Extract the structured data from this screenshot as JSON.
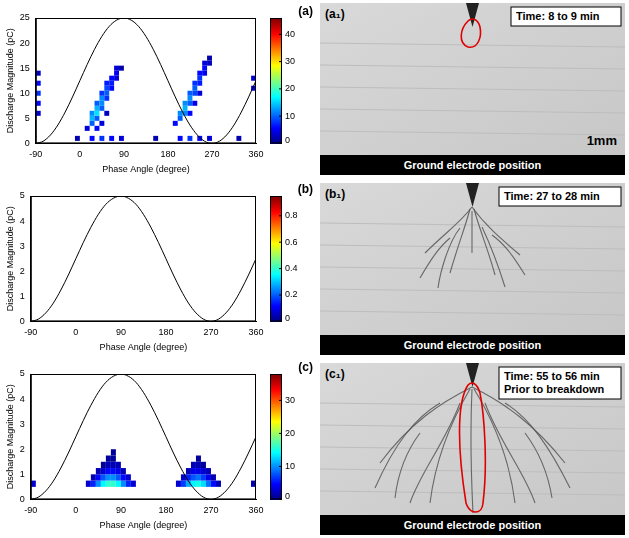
{
  "chart_data": [
    {
      "type": "heatmap",
      "label": "(a)",
      "x_label": "Phase Angle (degree)",
      "y_label": "Discharge Magnitude (pC)",
      "xlim": [
        -90,
        360
      ],
      "xticks": [
        -90,
        0,
        90,
        180,
        270,
        360
      ],
      "ylim": [
        0,
        25
      ],
      "yticks": [
        0,
        5,
        10,
        15,
        20,
        25
      ],
      "grid": false,
      "bin": [
        10,
        1
      ],
      "cells": [
        [
          15,
          3,
          4
        ],
        [
          25,
          4,
          10
        ],
        [
          25,
          5,
          14
        ],
        [
          25,
          6,
          12
        ],
        [
          35,
          5,
          10
        ],
        [
          35,
          6,
          16
        ],
        [
          35,
          7,
          14
        ],
        [
          35,
          8,
          10
        ],
        [
          45,
          7,
          10
        ],
        [
          45,
          8,
          12
        ],
        [
          45,
          9,
          12
        ],
        [
          45,
          10,
          8
        ],
        [
          55,
          9,
          8
        ],
        [
          55,
          10,
          10
        ],
        [
          55,
          11,
          9
        ],
        [
          55,
          12,
          7
        ],
        [
          65,
          11,
          6
        ],
        [
          65,
          12,
          7
        ],
        [
          65,
          13,
          6
        ],
        [
          75,
          13,
          4
        ],
        [
          75,
          14,
          5
        ],
        [
          75,
          15,
          4
        ],
        [
          85,
          15,
          2
        ],
        [
          35,
          3,
          6
        ],
        [
          45,
          4,
          4
        ],
        [
          55,
          6,
          3
        ],
        [
          195,
          4,
          6
        ],
        [
          205,
          5,
          10
        ],
        [
          205,
          6,
          12
        ],
        [
          215,
          6,
          12
        ],
        [
          215,
          7,
          14
        ],
        [
          215,
          8,
          12
        ],
        [
          225,
          8,
          10
        ],
        [
          225,
          9,
          12
        ],
        [
          225,
          10,
          10
        ],
        [
          235,
          10,
          9
        ],
        [
          235,
          11,
          10
        ],
        [
          235,
          12,
          8
        ],
        [
          245,
          12,
          7
        ],
        [
          245,
          13,
          8
        ],
        [
          245,
          14,
          6
        ],
        [
          255,
          14,
          5
        ],
        [
          255,
          15,
          6
        ],
        [
          255,
          16,
          4
        ],
        [
          265,
          16,
          3
        ],
        [
          265,
          17,
          2
        ],
        [
          225,
          6,
          6
        ],
        [
          245,
          10,
          4
        ],
        [
          235,
          8,
          5
        ],
        [
          25,
          1,
          6
        ],
        [
          45,
          1,
          8
        ],
        [
          65,
          1,
          6
        ],
        [
          85,
          1,
          4
        ],
        [
          205,
          1,
          6
        ],
        [
          225,
          1,
          8
        ],
        [
          245,
          1,
          6
        ],
        [
          265,
          1,
          4
        ],
        [
          -5,
          1,
          2
        ],
        [
          155,
          1,
          2
        ],
        [
          325,
          1,
          2
        ],
        [
          -85,
          6,
          4
        ],
        [
          -85,
          8,
          6
        ],
        [
          -85,
          10,
          8
        ],
        [
          -85,
          12,
          6
        ],
        [
          -85,
          14,
          3
        ],
        [
          355,
          11,
          5
        ],
        [
          355,
          13,
          4
        ]
      ],
      "colorbar": {
        "range": [
          0,
          46
        ],
        "ticks": [
          0,
          10,
          20,
          30,
          40
        ]
      },
      "reference": {
        "color": "#000000",
        "x": [
          -90,
          -75,
          -60,
          -45,
          -30,
          -15,
          0,
          15,
          30,
          45,
          60,
          75,
          90,
          105,
          120,
          135,
          150,
          165,
          180,
          195,
          210,
          225,
          240,
          255,
          270,
          285,
          300,
          315,
          330,
          345,
          360
        ],
        "values": [
          0,
          0.43,
          1.68,
          3.66,
          6.25,
          9.26,
          12.5,
          15.74,
          18.75,
          21.34,
          23.33,
          24.57,
          25,
          24.57,
          23.33,
          21.34,
          18.75,
          15.74,
          12.5,
          9.26,
          6.25,
          3.66,
          1.68,
          0.43,
          0,
          0.43,
          1.68,
          3.66,
          6.25,
          9.26,
          12.5
        ]
      }
    },
    {
      "type": "heatmap",
      "label": "(b)",
      "x_label": "Phase Angle (degree)",
      "y_label": "Discharge Magnitude (pC)",
      "xlim": [
        -90,
        360
      ],
      "xticks": [
        -90,
        0,
        90,
        180,
        270,
        360
      ],
      "ylim": [
        0,
        5
      ],
      "yticks": [
        0,
        1,
        2,
        3,
        4,
        5
      ],
      "grid": false,
      "bin": [
        10,
        0.25
      ],
      "cells": [],
      "colorbar": {
        "range": [
          0,
          0.95
        ],
        "ticks": [
          0,
          0.2,
          0.4,
          0.6,
          0.8
        ]
      },
      "reference": {
        "color": "#000000",
        "x": [
          -90,
          -75,
          -60,
          -45,
          -30,
          -15,
          0,
          15,
          30,
          45,
          60,
          75,
          90,
          105,
          120,
          135,
          150,
          165,
          180,
          195,
          210,
          225,
          240,
          255,
          270,
          285,
          300,
          315,
          330,
          345,
          360
        ],
        "values": [
          0,
          0.09,
          0.34,
          0.73,
          1.25,
          1.85,
          2.5,
          3.15,
          3.75,
          4.27,
          4.67,
          4.91,
          5,
          4.91,
          4.67,
          4.27,
          3.75,
          3.15,
          2.5,
          1.85,
          1.25,
          0.73,
          0.34,
          0.09,
          0,
          0.09,
          0.34,
          0.73,
          1.25,
          1.85,
          2.5
        ]
      }
    },
    {
      "type": "heatmap",
      "label": "(c)",
      "x_label": "Phase Angle (degree)",
      "y_label": "Discharge Magnitude (pC)",
      "xlim": [
        -90,
        360
      ],
      "xticks": [
        -90,
        0,
        90,
        180,
        270,
        360
      ],
      "ylim": [
        0,
        5
      ],
      "yticks": [
        0,
        1,
        2,
        3,
        4,
        5
      ],
      "grid": false,
      "bin": [
        10,
        0.25
      ],
      "cells": [
        [
          25,
          0.625,
          3
        ],
        [
          35,
          0.625,
          6
        ],
        [
          35,
          0.875,
          2
        ],
        [
          45,
          0.625,
          10
        ],
        [
          45,
          0.875,
          5
        ],
        [
          45,
          1.125,
          2
        ],
        [
          55,
          0.625,
          14
        ],
        [
          55,
          0.875,
          8
        ],
        [
          55,
          1.125,
          3
        ],
        [
          55,
          1.375,
          1
        ],
        [
          65,
          0.625,
          16
        ],
        [
          65,
          0.875,
          10
        ],
        [
          65,
          1.125,
          5
        ],
        [
          65,
          1.375,
          2
        ],
        [
          65,
          1.625,
          1
        ],
        [
          75,
          0.625,
          16
        ],
        [
          75,
          0.875,
          10
        ],
        [
          75,
          1.125,
          5
        ],
        [
          75,
          1.375,
          2
        ],
        [
          75,
          1.625,
          1
        ],
        [
          75,
          1.875,
          1
        ],
        [
          85,
          0.625,
          14
        ],
        [
          85,
          0.875,
          8
        ],
        [
          85,
          1.125,
          4
        ],
        [
          85,
          1.375,
          2
        ],
        [
          95,
          0.625,
          10
        ],
        [
          95,
          0.875,
          5
        ],
        [
          95,
          1.125,
          2
        ],
        [
          105,
          0.625,
          6
        ],
        [
          105,
          0.875,
          3
        ],
        [
          115,
          0.625,
          3
        ],
        [
          205,
          0.625,
          3
        ],
        [
          215,
          0.625,
          7
        ],
        [
          215,
          0.875,
          3
        ],
        [
          225,
          0.625,
          11
        ],
        [
          225,
          0.875,
          6
        ],
        [
          225,
          1.125,
          2
        ],
        [
          235,
          0.625,
          14
        ],
        [
          235,
          0.875,
          8
        ],
        [
          235,
          1.125,
          4
        ],
        [
          235,
          1.375,
          2
        ],
        [
          245,
          0.625,
          15
        ],
        [
          245,
          0.875,
          9
        ],
        [
          245,
          1.125,
          4
        ],
        [
          245,
          1.375,
          2
        ],
        [
          245,
          1.625,
          1
        ],
        [
          255,
          0.625,
          13
        ],
        [
          255,
          0.875,
          7
        ],
        [
          255,
          1.125,
          3
        ],
        [
          255,
          1.375,
          1
        ],
        [
          265,
          0.625,
          9
        ],
        [
          265,
          0.875,
          4
        ],
        [
          265,
          1.125,
          2
        ],
        [
          275,
          0.625,
          5
        ],
        [
          275,
          0.875,
          2
        ],
        [
          285,
          0.625,
          2
        ],
        [
          -85,
          0.625,
          3
        ],
        [
          355,
          0.625,
          2
        ]
      ],
      "colorbar": {
        "range": [
          0,
          38
        ],
        "ticks": [
          0,
          10,
          20,
          30
        ]
      },
      "reference": {
        "color": "#000000",
        "x": [
          -90,
          -75,
          -60,
          -45,
          -30,
          -15,
          0,
          15,
          30,
          45,
          60,
          75,
          90,
          105,
          120,
          135,
          150,
          165,
          180,
          195,
          210,
          225,
          240,
          255,
          270,
          285,
          300,
          315,
          330,
          345,
          360
        ],
        "values": [
          0,
          0.09,
          0.34,
          0.73,
          1.25,
          1.85,
          2.5,
          3.15,
          3.75,
          4.27,
          4.67,
          4.91,
          5,
          4.91,
          4.67,
          4.27,
          3.75,
          3.15,
          2.5,
          1.85,
          1.25,
          0.73,
          0.34,
          0.09,
          0,
          0.09,
          0.34,
          0.73,
          1.25,
          1.85,
          2.5
        ]
      }
    }
  ],
  "images": [
    {
      "label": "(a₁)",
      "time": [
        "Time: 8 to 9 min"
      ],
      "scale": "1mm",
      "ground": "Ground electrode position"
    },
    {
      "label": "(b₁)",
      "time": [
        "Time: 27 to 28 min"
      ],
      "ground": "Ground electrode position"
    },
    {
      "label": "(c₁)",
      "time": [
        "Time: 55 to 56 min",
        "Prior to breakdown"
      ],
      "ground": "Ground electrode position"
    }
  ]
}
